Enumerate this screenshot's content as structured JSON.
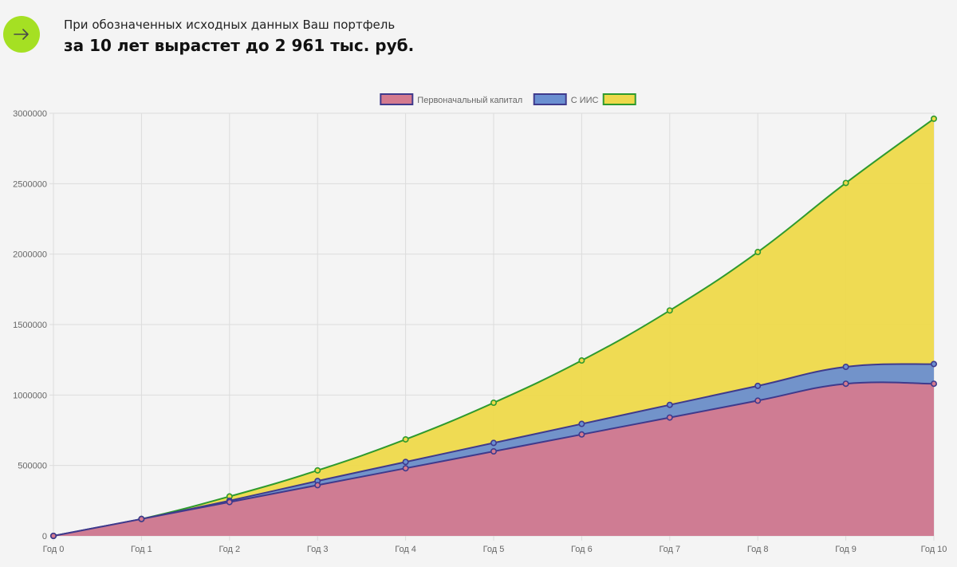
{
  "header": {
    "subtitle": "При обозначенных исходных данных Ваш портфель",
    "headline": "за 10 лет вырастет до 2 961 тыс. руб.",
    "arrow_icon": "arrow-right-icon"
  },
  "colors": {
    "accent": "#a5e023",
    "initial_fill": "#d47a8f",
    "initial_line": "#3f3a8c",
    "iis_fill": "#6a8fd1",
    "iis_line": "#3f3a8c",
    "total_fill": "#eed94a",
    "total_line": "#2e9a2e",
    "grid": "#dcdcdc"
  },
  "chart_data": {
    "type": "area",
    "title": "",
    "xlabel": "",
    "ylabel": "",
    "ylim": [
      0,
      3000000
    ],
    "yticks": [
      0,
      500000,
      1000000,
      1500000,
      2000000,
      2500000,
      3000000
    ],
    "ytick_labels": [
      "0",
      "500000",
      "1000000",
      "1500000",
      "2000000",
      "2500000",
      "3000000"
    ],
    "categories": [
      "Год 0",
      "Год 1",
      "Год 2",
      "Год 3",
      "Год 4",
      "Год 5",
      "Год 6",
      "Год 7",
      "Год 8",
      "Год 9",
      "Год 10"
    ],
    "legend_position": "top-center",
    "series": [
      {
        "name": "Первоначальный капитал",
        "values": [
          0,
          120000,
          240000,
          360000,
          480000,
          600000,
          720000,
          840000,
          960000,
          1080000,
          1080000
        ]
      },
      {
        "name": "С ИИС",
        "values": [
          0,
          120000,
          250000,
          390000,
          525000,
          660000,
          795000,
          930000,
          1065000,
          1200000,
          1220000
        ]
      },
      {
        "name": "",
        "values": [
          0,
          120000,
          280000,
          465000,
          685000,
          945000,
          1245000,
          1600000,
          2015000,
          2505000,
          2961000
        ]
      }
    ]
  }
}
